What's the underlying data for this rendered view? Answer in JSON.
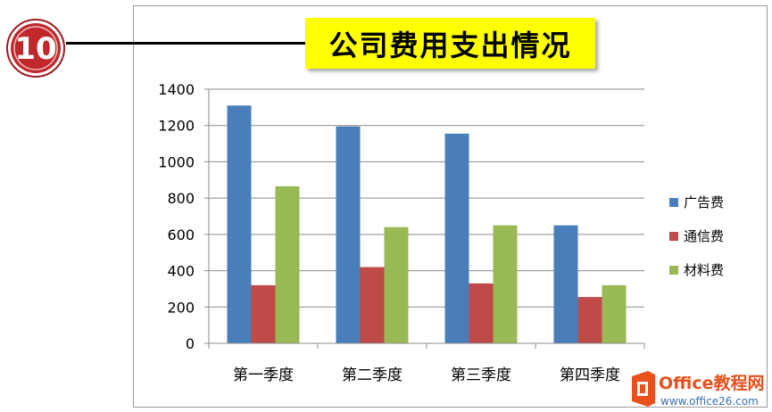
{
  "badge": {
    "number": "10",
    "color": "#c0282c"
  },
  "watermark": {
    "brand": "Office教程网",
    "url": "www.office26.com",
    "logo_icon": "office-logo-icon"
  },
  "chart_data": {
    "type": "bar",
    "title": "公司费用支出情况",
    "categories": [
      "第一季度",
      "第二季度",
      "第三季度",
      "第四季度"
    ],
    "series": [
      {
        "name": "广告费",
        "color": "#4a7ebb",
        "values": [
          1310,
          1195,
          1155,
          650
        ]
      },
      {
        "name": "通信费",
        "color": "#be4b48",
        "values": [
          320,
          420,
          330,
          255
        ]
      },
      {
        "name": "材料费",
        "color": "#98b954",
        "values": [
          865,
          640,
          650,
          320
        ]
      }
    ],
    "yticks": [
      "0",
      "200",
      "400",
      "600",
      "800",
      "1000",
      "1200",
      "1400"
    ],
    "ylim": [
      0,
      1400
    ],
    "grid": true,
    "legend_position": "right",
    "xlabel": "",
    "ylabel": ""
  }
}
